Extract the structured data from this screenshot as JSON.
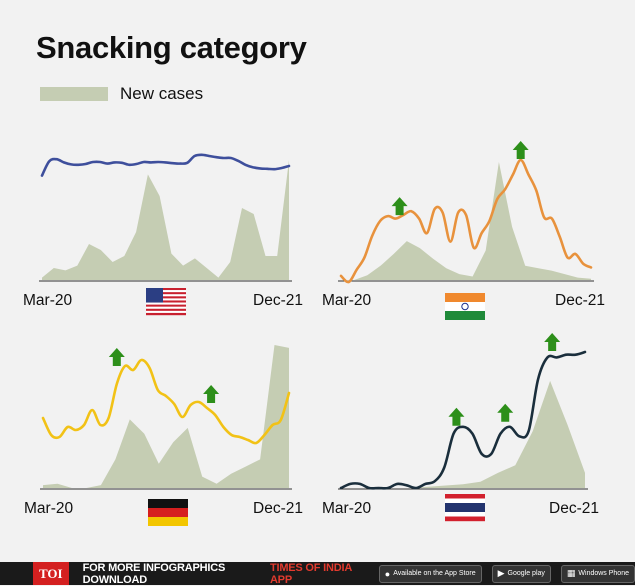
{
  "chart_data": {
    "type": "line",
    "title": "Snacking category",
    "legend": {
      "label": "New cases",
      "color": "#c5cdb3",
      "placement": "top-left"
    },
    "x_range": [
      "Mar-20",
      "Dec-21"
    ],
    "panels": [
      {
        "country": "USA",
        "flag": "usa-flag-icon",
        "series_name": "Snacking category",
        "line_color": "#3e4f9c",
        "line": [
          36,
          72,
          77,
          69,
          64,
          63,
          65,
          70,
          70,
          66,
          69,
          68,
          63,
          65,
          70,
          69,
          70,
          69,
          67,
          66,
          68,
          85,
          88,
          85,
          82,
          80,
          80,
          73,
          63,
          57,
          54,
          53,
          52,
          55,
          60
        ],
        "cases": [
          2,
          10,
          8,
          12,
          30,
          25,
          15,
          20,
          40,
          88,
          70,
          22,
          12,
          18,
          10,
          2,
          15,
          60,
          55,
          20,
          20,
          100
        ],
        "markers": []
      },
      {
        "country": "India",
        "flag": "india-flag-icon",
        "series_name": "Snacking category",
        "line_color": "#e8923d",
        "line": [
          5,
          0,
          10,
          20,
          38,
          50,
          54,
          52,
          55,
          58,
          52,
          40,
          60,
          57,
          33,
          57,
          55,
          28,
          40,
          50,
          68,
          76,
          88,
          100,
          88,
          75,
          53,
          52,
          37,
          20,
          23,
          15,
          12
        ],
        "cases": [
          0,
          0,
          4,
          12,
          22,
          33,
          27,
          18,
          10,
          5,
          3,
          25,
          100,
          45,
          12,
          10,
          8,
          5,
          2,
          1
        ],
        "markers": [
          {
            "x": 7.5,
            "y": 54
          },
          {
            "x": 23,
            "y": 100
          }
        ]
      },
      {
        "country": "Germany",
        "flag": "germany-flag-icon",
        "series_name": "Snacking category",
        "line_color": "#f2c216",
        "line": [
          42,
          25,
          23,
          33,
          30,
          35,
          50,
          35,
          42,
          76,
          94,
          90,
          100,
          92,
          70,
          64,
          56,
          43,
          55,
          58,
          52,
          45,
          33,
          25,
          23,
          20,
          17,
          25,
          35,
          40,
          67
        ],
        "cases": [
          2,
          3,
          0,
          0,
          2,
          20,
          48,
          38,
          17,
          32,
          42,
          8,
          3,
          10,
          15,
          20,
          100,
          98
        ],
        "markers": [
          {
            "x": 9,
            "y": 93
          },
          {
            "x": 20.5,
            "y": 56
          }
        ]
      },
      {
        "country": "Thailand",
        "flag": "thailand-flag-icon",
        "series_name": "Snacking category",
        "line_color": "#1a2e3c",
        "line": [
          0,
          3,
          3,
          0,
          0,
          0,
          3,
          2,
          0,
          3,
          5,
          15,
          40,
          45,
          40,
          25,
          25,
          40,
          45,
          38,
          42,
          80,
          96,
          96,
          98,
          98,
          100
        ],
        "cases": [
          0,
          0,
          0,
          0,
          0,
          1,
          2,
          3,
          5,
          12,
          18,
          45,
          85,
          50,
          12
        ],
        "markers": [
          {
            "x": 12.3,
            "y": 45
          },
          {
            "x": 17.5,
            "y": 48
          },
          {
            "x": 22.5,
            "y": 100
          }
        ]
      }
    ]
  },
  "footer": {
    "logo": "TOI",
    "cta_white": "FOR MORE  INFOGRAPHICS DOWNLOAD",
    "cta_red": "TIMES OF INDIA  APP",
    "badges": [
      {
        "icon": "apple-icon",
        "label": "Available on the App Store"
      },
      {
        "icon": "google-play-icon",
        "label": "Google play"
      },
      {
        "icon": "windows-icon",
        "label": "Windows Phone"
      }
    ]
  }
}
